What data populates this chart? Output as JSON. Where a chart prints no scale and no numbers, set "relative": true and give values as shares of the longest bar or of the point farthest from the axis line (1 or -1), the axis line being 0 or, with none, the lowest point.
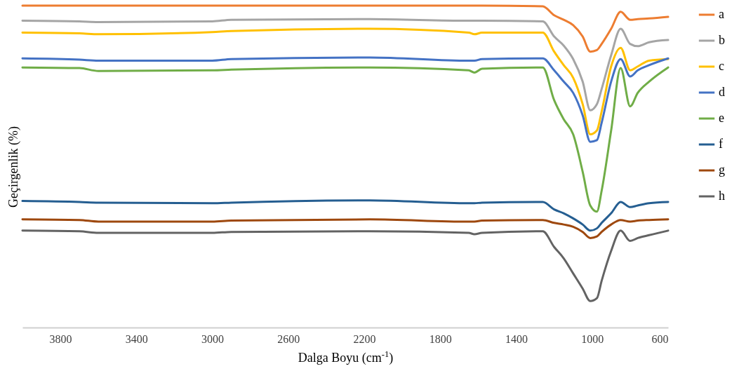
{
  "chart_data": {
    "type": "line",
    "relative": true,
    "xlabel": "Dalga Boyu (cm$^{-1}$)",
    "ylabel": "Geçirgenlik (%)",
    "legend": "right",
    "xlim": [
      4000,
      600
    ],
    "xticks": [
      3800,
      3400,
      3000,
      2600,
      2200,
      1800,
      1400,
      1000,
      600
    ],
    "x": [
      4000,
      3700,
      3600,
      3000,
      2900,
      2170,
      1650,
      1620,
      1580,
      1260,
      1200,
      1150,
      1100,
      1050,
      1010,
      975,
      950,
      900,
      850,
      800,
      760,
      700,
      600
    ],
    "series": [
      {
        "name": "a",
        "color": "#ed7d31",
        "values": [
          1,
          1,
          1,
          1,
          1,
          1,
          1,
          1,
          1,
          0.998,
          0.97,
          0.956,
          0.939,
          0.904,
          0.857,
          0.862,
          0.881,
          0.928,
          0.981,
          0.956,
          0.958,
          0.96,
          0.965
        ]
      },
      {
        "name": "b",
        "color": "#a5a5a5",
        "values": [
          0.953,
          0.951,
          0.949,
          0.951,
          0.956,
          0.958,
          0.953,
          0.953,
          0.953,
          0.951,
          0.904,
          0.876,
          0.834,
          0.764,
          0.675,
          0.694,
          0.741,
          0.846,
          0.928,
          0.881,
          0.874,
          0.886,
          0.893
        ]
      },
      {
        "name": "c",
        "color": "#ffc000",
        "values": [
          0.916,
          0.914,
          0.911,
          0.918,
          0.921,
          0.928,
          0.916,
          0.911,
          0.916,
          0.916,
          0.857,
          0.815,
          0.776,
          0.694,
          0.6,
          0.612,
          0.671,
          0.811,
          0.869,
          0.799,
          0.811,
          0.829,
          0.834
        ]
      },
      {
        "name": "d",
        "color": "#4472c4",
        "values": [
          0.836,
          0.832,
          0.829,
          0.829,
          0.834,
          0.839,
          0.829,
          0.829,
          0.834,
          0.836,
          0.799,
          0.764,
          0.729,
          0.659,
          0.577,
          0.582,
          0.636,
          0.764,
          0.834,
          0.78,
          0.799,
          0.815,
          0.836
        ]
      },
      {
        "name": "e",
        "color": "#70ad47",
        "values": [
          0.808,
          0.806,
          0.797,
          0.799,
          0.801,
          0.808,
          0.799,
          0.792,
          0.804,
          0.808,
          0.706,
          0.647,
          0.6,
          0.484,
          0.379,
          0.36,
          0.425,
          0.612,
          0.806,
          0.687,
          0.729,
          0.764,
          0.808
        ]
      },
      {
        "name": "f",
        "color": "#255e91",
        "values": [
          0.393,
          0.39,
          0.388,
          0.386,
          0.388,
          0.395,
          0.386,
          0.386,
          0.388,
          0.39,
          0.367,
          0.355,
          0.339,
          0.32,
          0.301,
          0.308,
          0.325,
          0.355,
          0.39,
          0.374,
          0.379,
          0.386,
          0.39
        ]
      },
      {
        "name": "g",
        "color": "#9e480e",
        "values": [
          0.336,
          0.334,
          0.329,
          0.329,
          0.332,
          0.336,
          0.329,
          0.329,
          0.332,
          0.334,
          0.325,
          0.32,
          0.313,
          0.297,
          0.278,
          0.283,
          0.297,
          0.32,
          0.334,
          0.329,
          0.332,
          0.334,
          0.336
        ]
      },
      {
        "name": "h",
        "color": "#636363",
        "values": [
          0.301,
          0.299,
          0.294,
          0.294,
          0.297,
          0.299,
          0.294,
          0.29,
          0.294,
          0.299,
          0.25,
          0.215,
          0.168,
          0.121,
          0.082,
          0.091,
          0.145,
          0.238,
          0.301,
          0.269,
          0.278,
          0.287,
          0.301
        ]
      }
    ]
  }
}
